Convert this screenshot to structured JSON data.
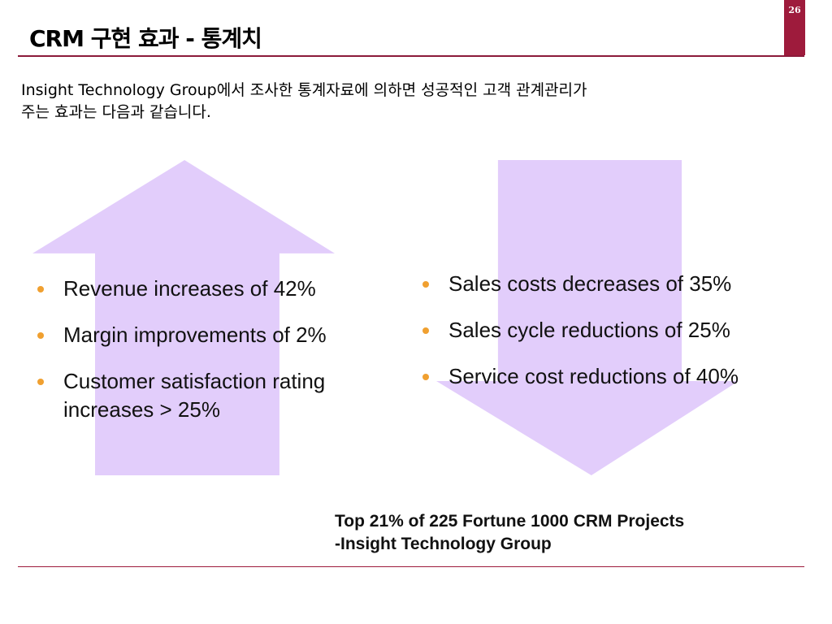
{
  "header": {
    "title": "CRM 구현 효과 - 통계치",
    "page_number": "26"
  },
  "intro": {
    "line1": "Insight Technology Group에서 조사한 통계자료에 의하면 성공적인 고객 관계관리가",
    "line2": "주는 효과는 다음과 같습니다."
  },
  "left_bullets": [
    "Revenue increases of 42%",
    "Margin improvements of 2%",
    "Customer satisfaction rating increases > 25%"
  ],
  "right_bullets": [
    "Sales costs decreases of 35%",
    "Sales cycle reductions of 25%",
    "Service cost reductions of 40%"
  ],
  "source": {
    "line1": "Top 21% of 225 Fortune 1000 CRM Projects",
    "line2": "-Insight Technology Group"
  },
  "colors": {
    "accent": "#9e1b3c",
    "arrow_fill": "#e2cdfb",
    "bullet": "#f0a030"
  }
}
